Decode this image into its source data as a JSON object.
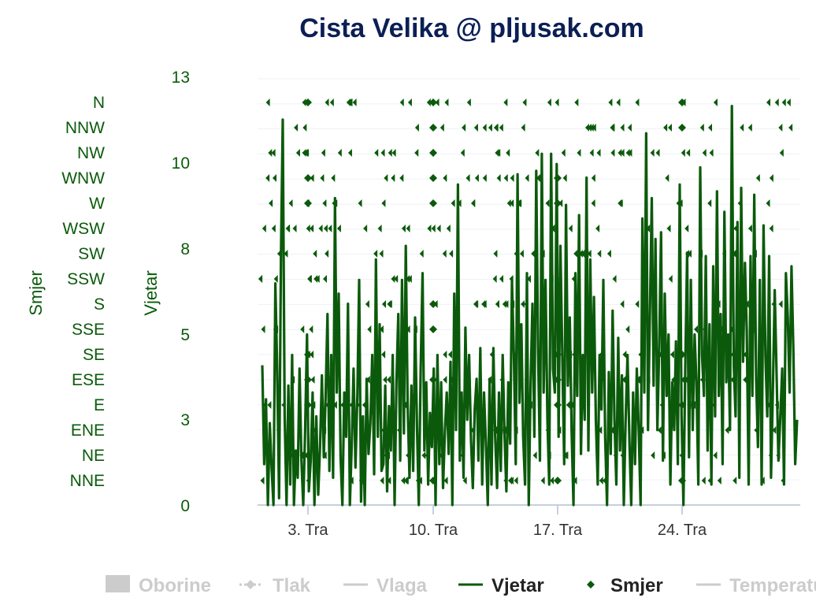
{
  "chart_data": {
    "type": "line",
    "title": "Cista Velika @ pljusak.com",
    "x_ticks": [
      "3. Tra",
      "10. Tra",
      "17. Tra",
      "24. Tra"
    ],
    "y_left_vjetar": {
      "label": "Vjetar",
      "ticks": [
        "13",
        "10",
        "8",
        "5",
        "3",
        "0"
      ],
      "range": [
        0,
        12.5
      ]
    },
    "y_left_smjer": {
      "label": "Smjer",
      "ticks": [
        "N",
        "NNW",
        "NW",
        "WNW",
        "W",
        "WSW",
        "SW",
        "SSW",
        "S",
        "SSE",
        "SE",
        "ESE",
        "E",
        "ENE",
        "NE",
        "NNE"
      ]
    },
    "grid": true,
    "legend": {
      "placement": "bottom",
      "items": [
        {
          "name": "Oborine",
          "active": false
        },
        {
          "name": "Tlak",
          "active": false
        },
        {
          "name": "Vlaga",
          "active": false
        },
        {
          "name": "Vjetar",
          "active": true
        },
        {
          "name": "Smjer",
          "active": true
        },
        {
          "name": "Temperatura",
          "active": false
        }
      ]
    },
    "series": [
      {
        "name": "Vjetar",
        "color": "#0b5a0b",
        "values": [
          4.1,
          1.2,
          3.1,
          0.0,
          2.4,
          1.1,
          0.0,
          6.5,
          4.0,
          0.2,
          7.3,
          11.3,
          2.6,
          0.0,
          3.5,
          0.6,
          4.4,
          0.0,
          1.6,
          0.8,
          4.0,
          1.3,
          0.0,
          2.2,
          5.0,
          0.4,
          1.3,
          3.3,
          0.0,
          2.6,
          0.3,
          1.7,
          3.8,
          1.4,
          3.2,
          5.6,
          1.0,
          4.4,
          0.8,
          9.0,
          3.3,
          6.2,
          1.4,
          0.0,
          3.3,
          2.0,
          5.9,
          0.0,
          1.8,
          4.0,
          1.1,
          3.2,
          6.6,
          0.1,
          2.6,
          0.0,
          3.7,
          1.5,
          2.4,
          4.4,
          0.9,
          7.2,
          2.0,
          5.3,
          1.0,
          1.2,
          3.5,
          0.4,
          2.9,
          1.6,
          4.4,
          0.0,
          3.6,
          5.6,
          1.3,
          6.6,
          2.1,
          7.6,
          3.0,
          0.8,
          3.5,
          1.0,
          5.5,
          2.3,
          0.0,
          4.0,
          6.8,
          1.6,
          3.6,
          0.6,
          2.7,
          1.7,
          4.0,
          0.0,
          4.4,
          1.2,
          3.6,
          0.5,
          2.2,
          3.3,
          1.5,
          4.2,
          0.0,
          6.2,
          2.2,
          9.4,
          1.3,
          3.3,
          0.8,
          5.2,
          2.5,
          4.4,
          1.9,
          0.5,
          2.8,
          3.7,
          1.3,
          4.6,
          0.6,
          3.3,
          1.8,
          0.0,
          3.7,
          0.6,
          4.6,
          2.0,
          0.5,
          3.3,
          1.0,
          4.4,
          2.0,
          0.4,
          3.6,
          1.8,
          6.6,
          4.4,
          1.2,
          9.7,
          3.0,
          5.3,
          2.0,
          0.6,
          6.8,
          0.0,
          3.6,
          5.9,
          2.0,
          9.8,
          4.6,
          1.3,
          10.3,
          3.3,
          6.6,
          2.5,
          0.6,
          10.3,
          4.0,
          3.3,
          10.0,
          2.0,
          7.6,
          4.4,
          1.2,
          8.8,
          3.5,
          5.5,
          2.2,
          0.0,
          6.8,
          3.2,
          8.5,
          1.5,
          4.4,
          2.5,
          9.6,
          1.6,
          7.2,
          3.3,
          6.1,
          2.5,
          0.6,
          4.4,
          2.8,
          6.6,
          2.0,
          0.0,
          3.9,
          1.5,
          5.7,
          2.5,
          0.6,
          4.9,
          1.6,
          3.8,
          0.0,
          2.5,
          4.4,
          1.9,
          0.0,
          3.3,
          1.2,
          4.0,
          2.2,
          0.0,
          8.4,
          3.3,
          10.9,
          2.2,
          5.6,
          9.0,
          3.5,
          7.8,
          2.2,
          4.6,
          8.0,
          1.3,
          6.2,
          3.2,
          5.0,
          0.6,
          3.6,
          2.2,
          4.8,
          1.2,
          9.4,
          2.6,
          0.0,
          4.0,
          7.4,
          1.4,
          6.6,
          2.2,
          5.0,
          3.6,
          0.6,
          9.9,
          4.4,
          3.2,
          7.3,
          1.6,
          5.3,
          0.6,
          7.0,
          2.6,
          9.2,
          3.2,
          5.6,
          1.2,
          8.6,
          3.6,
          5.0,
          2.2,
          11.7,
          4.1,
          2.6,
          8.3,
          0.8,
          9.3,
          4.2,
          7.1,
          5.1,
          0.6,
          7.3,
          3.2,
          9.1,
          3.7,
          1.7,
          6.6,
          0.6,
          8.2,
          4.4,
          2.6,
          7.3,
          0.8,
          3.3,
          6.3,
          3.8,
          1.3,
          2.6,
          4.0,
          0.6,
          6.8,
          5.5,
          3.3,
          7.0,
          4.5,
          1.2,
          2.5
        ]
      },
      {
        "name": "Smjer",
        "color": "#0b5a0b",
        "categories": [
          "N",
          "NNW",
          "NW",
          "WNW",
          "W",
          "WSW",
          "SW",
          "SSW",
          "S",
          "SSE",
          "SE",
          "ESE",
          "E",
          "ENE",
          "NE",
          "NNE"
        ],
        "values": [
          [
            "3. Tra",
            "N"
          ],
          [
            "3. Tra",
            "WNW"
          ],
          [
            "3. Tra",
            "W"
          ],
          [
            "3. Tra",
            "SE"
          ],
          [
            "3. Tra",
            "ESE"
          ],
          [
            "3. Tra",
            "E"
          ],
          [
            "3. Tra",
            "NE"
          ],
          [
            "10. Tra",
            "N"
          ],
          [
            "10. Tra",
            "NNW"
          ],
          [
            "10. Tra",
            "NW"
          ],
          [
            "10. Tra",
            "WNW"
          ],
          [
            "10. Tra",
            "W"
          ],
          [
            "10. Tra",
            "S"
          ],
          [
            "10. Tra",
            "SSE"
          ],
          [
            "10. Tra",
            "ESE"
          ],
          [
            "10. Tra",
            "NNE"
          ],
          [
            "17. Tra",
            "WNW"
          ],
          [
            "17. Tra",
            "W"
          ],
          [
            "17. Tra",
            "SE"
          ],
          [
            "17. Tra",
            "ESE"
          ],
          [
            "17. Tra",
            "E"
          ],
          [
            "17. Tra",
            "NNE"
          ],
          [
            "24. Tra",
            "N"
          ],
          [
            "24. Tra",
            "NNW"
          ],
          [
            "24. Tra",
            "SE"
          ],
          [
            "24. Tra",
            "E"
          ],
          [
            "24. Tra",
            "NNE"
          ]
        ]
      }
    ]
  }
}
